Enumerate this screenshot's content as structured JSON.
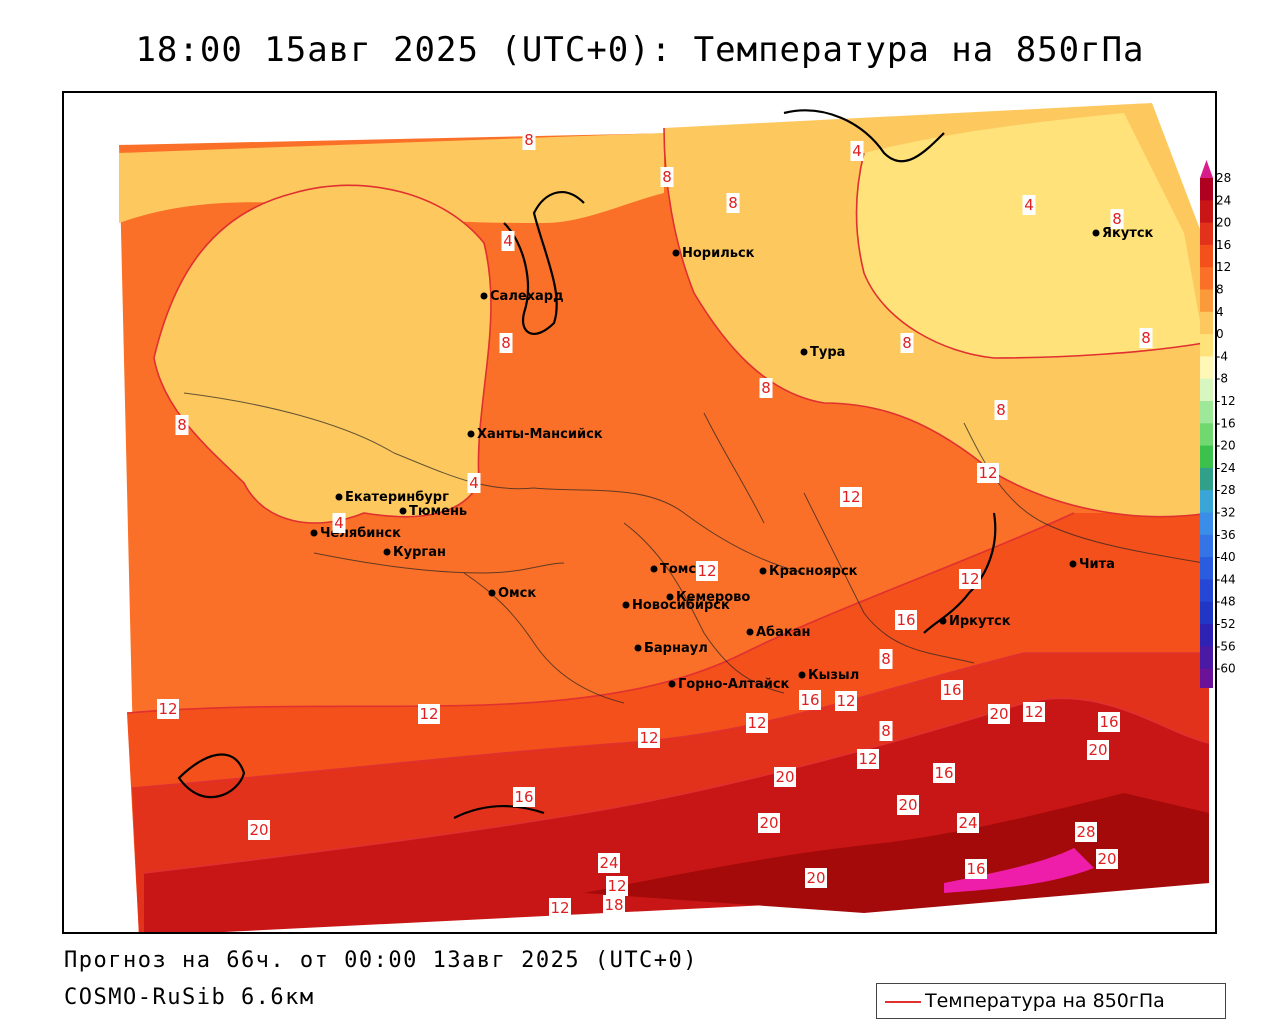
{
  "title": "18:00 15авг 2025 (UTC+0): Температура на 850гПа",
  "forecast_line": "Прогноз на 66ч. от 00:00 13авг 2025 (UTC+0)",
  "model_line": "COSMO-RuSib 6.6км",
  "legend": {
    "line_label": "Температура на 850гПа",
    "line_color": "#e03030"
  },
  "colors": {
    "t_0_4": "#ffe27a",
    "t_4_8": "#fdc85e",
    "t_8_12": "#fa7028",
    "t_12_16": "#f3501c",
    "t_16_20": "#e2321c",
    "t_20_24": "#c81616",
    "t_24_28": "#a40a0a",
    "t_28_plus": "#ee1eaa",
    "isotherm": "#e03030",
    "coast": "#000000"
  },
  "colorbar": {
    "ticks": [
      "28",
      "24",
      "20",
      "16",
      "12",
      "8",
      "4",
      "0",
      "-4",
      "-8",
      "-12",
      "-16",
      "-20",
      "-24",
      "-28",
      "-32",
      "-36",
      "-40",
      "-44",
      "-48",
      "-52",
      "-56",
      "-60"
    ],
    "colors": [
      "#b00020",
      "#c81616",
      "#e2321c",
      "#f3501c",
      "#fa7028",
      "#fb9a3a",
      "#fdc85e",
      "#ffe27a",
      "#fff7b8",
      "#d8f6c0",
      "#9ee89a",
      "#6fd870",
      "#3cc24c",
      "#31a08a",
      "#3aa6d8",
      "#3a8ee8",
      "#3474e6",
      "#2a5ce0",
      "#2447d6",
      "#2036c4",
      "#2e22b4",
      "#4a1aa4",
      "#6a1298",
      "#8a1090"
    ],
    "top_color": "#d81c8c",
    "bottom_color": "#7a10a8"
  },
  "cities": [
    {
      "name": "Норильск"
    },
    {
      "name": "Якутск"
    },
    {
      "name": "Салехард"
    },
    {
      "name": "Тура"
    },
    {
      "name": "Ханты-Мансийск"
    },
    {
      "name": "Екатеринбург"
    },
    {
      "name": "Тюмень"
    },
    {
      "name": "Челябинск"
    },
    {
      "name": "Курган"
    },
    {
      "name": "Омск"
    },
    {
      "name": "Новосибирск"
    },
    {
      "name": "Томск"
    },
    {
      "name": "Кемерово"
    },
    {
      "name": "Красноярск"
    },
    {
      "name": "Барнаул"
    },
    {
      "name": "Абакан"
    },
    {
      "name": "Горно-Алтайск"
    },
    {
      "name": "Кызыл"
    },
    {
      "name": "Иркутск"
    },
    {
      "name": "Чита"
    }
  ],
  "isotherm_labels": [
    "8",
    "8",
    "8",
    "4",
    "4",
    "4",
    "8",
    "8",
    "4",
    "4",
    "8",
    "8",
    "8",
    "8",
    "8",
    "12",
    "12",
    "12",
    "8",
    "12",
    "12",
    "12",
    "16",
    "8",
    "12",
    "12",
    "12",
    "16",
    "16",
    "20",
    "12",
    "16",
    "20",
    "20",
    "12",
    "16",
    "20",
    "24",
    "28",
    "20",
    "16",
    "20",
    "24",
    "20",
    "16",
    "20",
    "18",
    "12",
    "12"
  ]
}
